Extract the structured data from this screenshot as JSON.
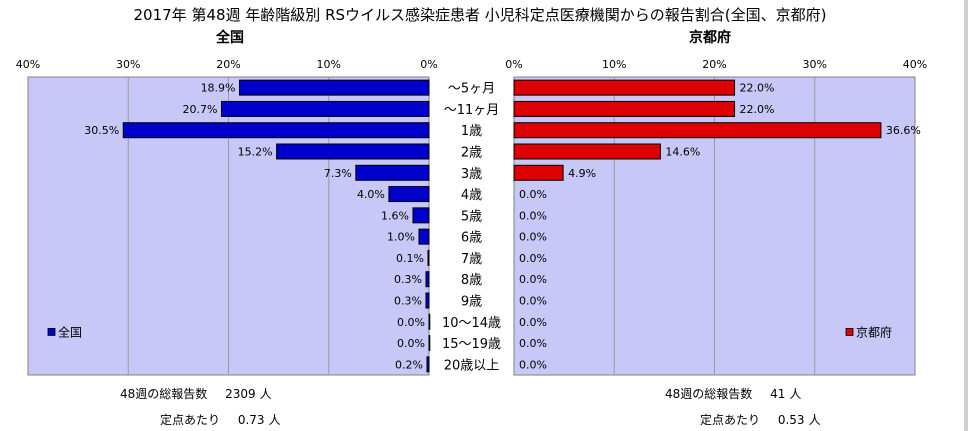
{
  "chart_data": {
    "type": "bar",
    "title": "2017年 第48週 年齢階級別 RSウイルス感染症患者 小児科定点医療機関からの報告割合(全国、京都府)",
    "categories": [
      "～5ヶ月",
      "～11ヶ月",
      "1歳",
      "2歳",
      "3歳",
      "4歳",
      "5歳",
      "6歳",
      "7歳",
      "8歳",
      "9歳",
      "10～14歳",
      "15～19歳",
      "20歳以上"
    ],
    "xlim": [
      0,
      40
    ],
    "ticks": [
      "40%",
      "30%",
      "20%",
      "10%",
      "0%"
    ],
    "ticks_right": [
      "0%",
      "10%",
      "20%",
      "30%",
      "40%"
    ],
    "grid": true,
    "series": [
      {
        "name": "全国",
        "side": "left",
        "panel_title": "全国",
        "legend": "全国",
        "color": "#0000cc",
        "values": [
          18.9,
          20.7,
          30.5,
          15.2,
          7.3,
          4.0,
          1.6,
          1.0,
          0.1,
          0.3,
          0.3,
          0.0,
          0.0,
          0.2
        ],
        "labels": [
          "18.9%",
          "20.7%",
          "30.5%",
          "15.2%",
          "7.3%",
          "4.0%",
          "1.6%",
          "1.0%",
          "0.1%",
          "0.3%",
          "0.3%",
          "0.0%",
          "0.0%",
          "0.2%"
        ]
      },
      {
        "name": "京都府",
        "side": "right",
        "panel_title": "京都府",
        "legend": "京都府",
        "color": "#dd0000",
        "values": [
          22.0,
          22.0,
          36.6,
          14.6,
          4.9,
          0.0,
          0.0,
          0.0,
          0.0,
          0.0,
          0.0,
          0.0,
          0.0,
          0.0
        ],
        "labels": [
          "22.0%",
          "22.0%",
          "36.6%",
          "14.6%",
          "4.9%",
          "0.0%",
          "0.0%",
          "0.0%",
          "0.0%",
          "0.0%",
          "0.0%",
          "0.0%",
          "0.0%",
          "0.0%"
        ]
      }
    ],
    "panel_background": "#c8c8f8"
  },
  "footer": {
    "national": {
      "total_label": "48週の総報告数",
      "total_value": "2309",
      "total_unit": "人",
      "per_label": "定点あたり",
      "per_value": "0.73",
      "per_unit": "人"
    },
    "kyoto": {
      "total_label": "48週の総報告数",
      "total_value": "41",
      "total_unit": "人",
      "per_label": "定点あたり",
      "per_value": "0.53",
      "per_unit": "人"
    }
  }
}
